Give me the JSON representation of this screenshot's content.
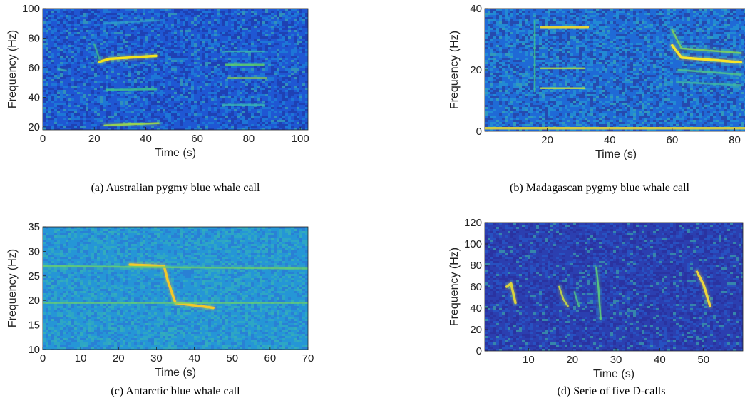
{
  "chart_data": [
    {
      "id": "a",
      "type": "heatmap",
      "caption": "(a) Australian pygmy blue whale call",
      "xlabel": "Time (s)",
      "ylabel": "Frequency (Hz)",
      "xlim": [
        0,
        103
      ],
      "ylim": [
        18,
        100
      ],
      "xticks": [
        0,
        20,
        40,
        60,
        80,
        100
      ],
      "yticks": [
        20,
        40,
        60,
        80,
        100
      ],
      "background_colors": [
        "#1e2f9a",
        "#1f57d3",
        "#1c8fdb"
      ],
      "seed": 11,
      "tracks": [
        {
          "points": [
            [
              22,
              64
            ],
            [
              26,
              66
            ],
            [
              44,
              68
            ]
          ],
          "color": "#f3e31a",
          "intensity": 1
        },
        {
          "points": [
            [
              25,
              45
            ],
            [
              44,
              45.5
            ]
          ],
          "color": "#3fc38a",
          "intensity": 0.6
        },
        {
          "points": [
            [
              24,
              21
            ],
            [
              45,
              22.5
            ]
          ],
          "color": "#9fd84a",
          "intensity": 0.8
        },
        {
          "points": [
            [
              20,
              76
            ],
            [
              22,
              66
            ]
          ],
          "color": "#3fc38a",
          "intensity": 0.5
        },
        {
          "points": [
            [
              71,
              71
            ],
            [
              86,
              71
            ]
          ],
          "color": "#39b9b0",
          "intensity": 0.6
        },
        {
          "points": [
            [
              71,
              62
            ],
            [
              86,
              62
            ]
          ],
          "color": "#5ed06a",
          "intensity": 0.7
        },
        {
          "points": [
            [
              72,
              53
            ],
            [
              87,
              53
            ]
          ],
          "color": "#8fd24c",
          "intensity": 0.8
        },
        {
          "points": [
            [
              70,
              35
            ],
            [
              86,
              35
            ]
          ],
          "color": "#39b9b0",
          "intensity": 0.5
        },
        {
          "points": [
            [
              6,
              59
            ],
            [
              9,
              58
            ]
          ],
          "color": "#39b9b0",
          "intensity": 0.5
        },
        {
          "points": [
            [
              24,
              90
            ],
            [
              45,
              92
            ]
          ],
          "color": "#2fa3c9",
          "intensity": 0.4
        }
      ]
    },
    {
      "id": "b",
      "type": "heatmap",
      "caption": "(b) Madagascan pygmy blue whale call",
      "xlabel": "Time (s)",
      "ylabel": "Frequency (Hz)",
      "xlim": [
        0,
        84
      ],
      "ylim": [
        0,
        40
      ],
      "xticks": [
        20,
        40,
        60,
        80
      ],
      "yticks": [
        0,
        20,
        40
      ],
      "background_colors": [
        "#2a2f8f",
        "#1f6ad6",
        "#24a4d4"
      ],
      "seed": 23,
      "tracks": [
        {
          "points": [
            [
              18,
              34
            ],
            [
              33,
              34
            ]
          ],
          "color": "#e6d43a",
          "intensity": 1
        },
        {
          "points": [
            [
              18,
              20.5
            ],
            [
              32,
              20.5
            ]
          ],
          "color": "#a6d64a",
          "intensity": 0.8
        },
        {
          "points": [
            [
              18,
              14
            ],
            [
              32,
              14
            ]
          ],
          "color": "#b8d848",
          "intensity": 0.8
        },
        {
          "points": [
            [
              16,
              36
            ],
            [
              16,
              13
            ]
          ],
          "color": "#3fc38a",
          "intensity": 0.6
        },
        {
          "points": [
            [
              60,
              28
            ],
            [
              63,
              24
            ],
            [
              82,
              22.5
            ]
          ],
          "color": "#f8e52a",
          "intensity": 1
        },
        {
          "points": [
            [
              60,
              33
            ],
            [
              63,
              27
            ],
            [
              82,
              25.5
            ]
          ],
          "color": "#7fd55a",
          "intensity": 0.7
        },
        {
          "points": [
            [
              62,
              20
            ],
            [
              82,
              18.5
            ]
          ],
          "color": "#4fc58a",
          "intensity": 0.6
        },
        {
          "points": [
            [
              62,
              16
            ],
            [
              82,
              15
            ]
          ],
          "color": "#3fb9a0",
          "intensity": 0.5
        },
        {
          "points": [
            [
              0,
              1
            ],
            [
              84,
              1
            ]
          ],
          "color": "#d8d040",
          "intensity": 0.9
        }
      ]
    },
    {
      "id": "c",
      "type": "heatmap",
      "caption": "(c) Antarctic blue whale call",
      "xlabel": "Time (s)",
      "ylabel": "Frequency (Hz)",
      "xlim": [
        0,
        70
      ],
      "ylim": [
        10,
        35
      ],
      "xticks": [
        0,
        10,
        20,
        30,
        40,
        50,
        60,
        70
      ],
      "yticks": [
        10,
        15,
        20,
        25,
        30,
        35
      ],
      "background_colors": [
        "#2e6fd6",
        "#2596d6",
        "#35b5b8"
      ],
      "seed": 37,
      "tracks": [
        {
          "points": [
            [
              23,
              27.3
            ],
            [
              32,
              27
            ],
            [
              33,
              24
            ],
            [
              35,
              19.5
            ],
            [
              45,
              18.5
            ]
          ],
          "color": "#f5c82a",
          "intensity": 1
        },
        {
          "points": [
            [
              0,
              27
            ],
            [
              70,
              26.5
            ]
          ],
          "color": "#6ed168",
          "intensity": 0.45
        },
        {
          "points": [
            [
              0,
              19.5
            ],
            [
              70,
              19.5
            ]
          ],
          "color": "#6ed168",
          "intensity": 0.45
        }
      ]
    },
    {
      "id": "d",
      "type": "heatmap",
      "caption": "(d) Serie of five D-calls",
      "xlabel": "Time (s)",
      "ylabel": "Frequency (Hz)",
      "xlim": [
        0,
        59
      ],
      "ylim": [
        0,
        120
      ],
      "xticks": [
        10,
        20,
        30,
        40,
        50
      ],
      "yticks": [
        0,
        20,
        40,
        60,
        80,
        100,
        120
      ],
      "background_colors": [
        "#2a2a96",
        "#2b3fb0",
        "#2560d0"
      ],
      "seed": 51,
      "tracks": [
        {
          "points": [
            [
              5,
              60
            ],
            [
              6,
              63
            ],
            [
              7,
              45
            ]
          ],
          "color": "#e0d838",
          "intensity": 0.9
        },
        {
          "points": [
            [
              17,
              60
            ],
            [
              18,
              48
            ],
            [
              19,
              42
            ]
          ],
          "color": "#c6da42",
          "intensity": 0.8
        },
        {
          "points": [
            [
              20.5,
              55
            ],
            [
              21.5,
              42
            ]
          ],
          "color": "#4fc58a",
          "intensity": 0.6
        },
        {
          "points": [
            [
              25.5,
              78
            ],
            [
              26,
              58
            ],
            [
              26.5,
              30
            ]
          ],
          "color": "#5ecf78",
          "intensity": 0.75
        },
        {
          "points": [
            [
              48.5,
              74
            ],
            [
              50,
              62
            ],
            [
              51.5,
              42
            ]
          ],
          "color": "#f0d83a",
          "intensity": 0.95
        }
      ]
    }
  ]
}
